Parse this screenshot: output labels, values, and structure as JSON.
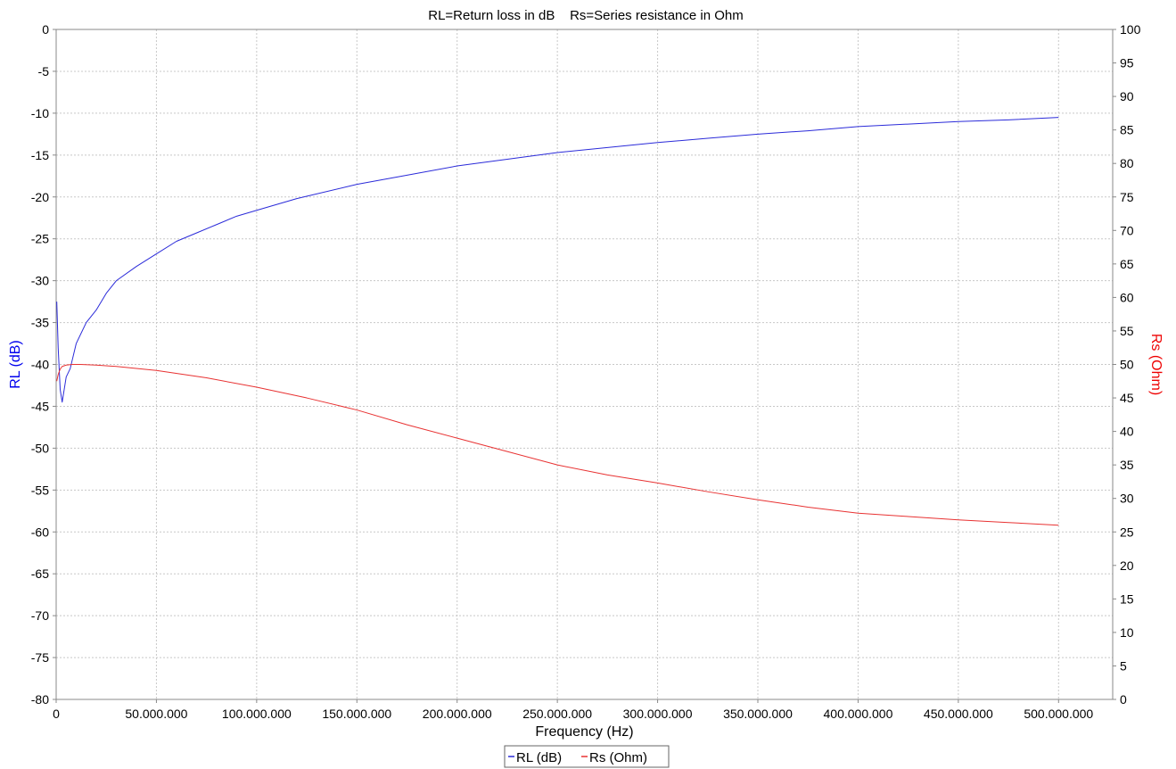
{
  "chart_data": {
    "type": "line",
    "title": "RL=Return loss in dB    Rs=Series resistance in Ohm",
    "xlabel": "Frequency (Hz)",
    "ylabel_left": "RL (dB)",
    "ylabel_right": "Rs (Ohm)",
    "xlim": [
      0,
      527000000
    ],
    "ylim_left": [
      -80,
      0
    ],
    "ylim_right": [
      0,
      100
    ],
    "x_ticks": [
      0,
      50000000,
      100000000,
      150000000,
      200000000,
      250000000,
      300000000,
      350000000,
      400000000,
      450000000,
      500000000
    ],
    "x_tick_labels": [
      "0",
      "50.000.000",
      "100.000.000",
      "150.000.000",
      "200.000.000",
      "250.000.000",
      "300.000.000",
      "350.000.000",
      "400.000.000",
      "450.000.000",
      "500.000.000"
    ],
    "y_left_ticks": [
      0,
      -5,
      -10,
      -15,
      -20,
      -25,
      -30,
      -35,
      -40,
      -45,
      -50,
      -55,
      -60,
      -65,
      -70,
      -75,
      -80
    ],
    "y_right_ticks": [
      100,
      95,
      90,
      85,
      80,
      75,
      70,
      65,
      60,
      55,
      50,
      45,
      40,
      35,
      30,
      25,
      20,
      15,
      10,
      5,
      0
    ],
    "grid": true,
    "legend_placement": "bottom-center",
    "colors": {
      "rl": "#2b2bd9",
      "rs": "#e83232",
      "left_axis_label": "#0000ee",
      "right_axis_label": "#ee0000",
      "grid": "#c8c8c8"
    },
    "series": [
      {
        "name": "RL (dB)",
        "axis": "left",
        "x": [
          300000,
          1000000,
          2000000,
          3000000,
          4000000,
          5000000,
          7000000,
          10000000,
          15000000,
          20000000,
          25000000,
          30000000,
          40000000,
          50000000,
          60000000,
          70000000,
          80000000,
          90000000,
          100000000,
          120000000,
          150000000,
          175000000,
          200000000,
          225000000,
          250000000,
          275000000,
          300000000,
          325000000,
          350000000,
          375000000,
          400000000,
          425000000,
          450000000,
          475000000,
          500000000
        ],
        "y": [
          -32.5,
          -38.0,
          -43.0,
          -44.5,
          -43.0,
          -41.5,
          -40.5,
          -37.5,
          -35.0,
          -33.5,
          -31.5,
          -30.0,
          -28.3,
          -26.8,
          -25.3,
          -24.3,
          -23.3,
          -22.3,
          -21.6,
          -20.2,
          -18.5,
          -17.4,
          -16.3,
          -15.5,
          -14.7,
          -14.1,
          -13.5,
          -13.0,
          -12.5,
          -12.1,
          -11.6,
          -11.3,
          -11.0,
          -10.8,
          -10.5
        ]
      },
      {
        "name": "Rs (Ohm)",
        "axis": "right",
        "x": [
          300000,
          1000000,
          2000000,
          3000000,
          5000000,
          8000000,
          12000000,
          20000000,
          30000000,
          50000000,
          75000000,
          100000000,
          125000000,
          150000000,
          175000000,
          200000000,
          225000000,
          250000000,
          275000000,
          300000000,
          325000000,
          350000000,
          375000000,
          400000000,
          425000000,
          450000000,
          475000000,
          500000000
        ],
        "y": [
          47.5,
          48.5,
          49.3,
          49.7,
          49.9,
          50.0,
          50.0,
          49.9,
          49.7,
          49.1,
          48.0,
          46.6,
          45.0,
          43.2,
          41.0,
          39.0,
          37.0,
          35.0,
          33.5,
          32.3,
          31.0,
          29.8,
          28.7,
          27.8,
          27.3,
          26.8,
          26.4,
          26.0
        ]
      }
    ]
  }
}
